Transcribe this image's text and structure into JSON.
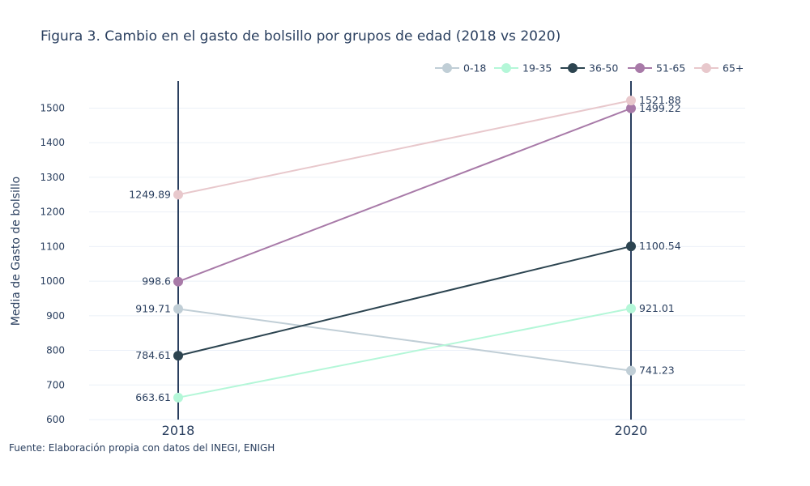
{
  "chart_data": {
    "type": "line",
    "title": "Figura 3. Cambio en el gasto de bolsillo por grupos de edad (2018 vs 2020)",
    "xlabel": "",
    "ylabel": "Media de Gasto de bolsillo",
    "source": "Fuente: Elaboración propia con datos del INEGI, ENIGH",
    "categories": [
      "2018",
      "2020"
    ],
    "ylim": [
      600,
      1590
    ],
    "yticks": [
      600,
      700,
      800,
      900,
      1000,
      1100,
      1200,
      1300,
      1400,
      1500
    ],
    "grid": true,
    "legend_position": "top-right",
    "series": [
      {
        "name": "0-18",
        "color": "#c0ced6",
        "values": [
          919.71,
          741.23
        ],
        "labels": [
          "919.71",
          "741.23"
        ]
      },
      {
        "name": "19-35",
        "color": "#b4f7d8",
        "values": [
          663.61,
          921.01
        ],
        "labels": [
          "663.61",
          "921.01"
        ]
      },
      {
        "name": "36-50",
        "color": "#2c4450",
        "values": [
          784.61,
          1100.54
        ],
        "labels": [
          "784.61",
          "1100.54"
        ]
      },
      {
        "name": "51-65",
        "color": "#a87aa8",
        "values": [
          998.6,
          1499.22
        ],
        "labels": [
          "998.6",
          "1499.22"
        ]
      },
      {
        "name": "65+",
        "color": "#e8c8cc",
        "values": [
          1249.89,
          1521.88
        ],
        "labels": [
          "1249.89",
          "1521.88"
        ]
      }
    ]
  }
}
